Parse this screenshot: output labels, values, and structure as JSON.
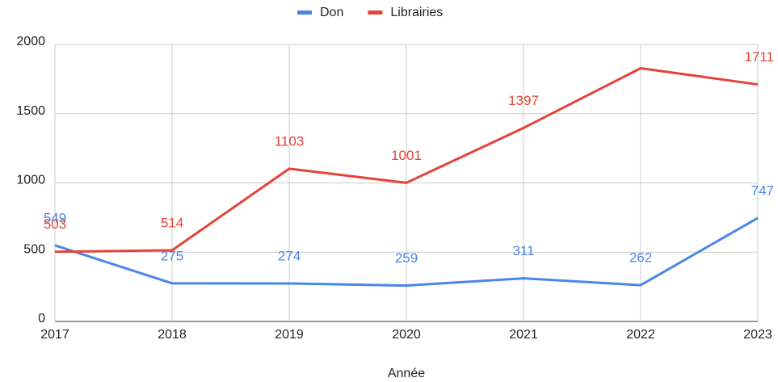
{
  "chart_data": {
    "type": "line",
    "x_label": "Année",
    "categories": [
      "2017",
      "2018",
      "2019",
      "2020",
      "2021",
      "2022",
      "2023"
    ],
    "series": [
      {
        "name": "Don",
        "color": "#4a86e8",
        "values": [
          549,
          275,
          274,
          259,
          311,
          262,
          747
        ],
        "value_labels": [
          "549",
          "275",
          "274",
          "259",
          "311",
          "262",
          "747"
        ]
      },
      {
        "name": "Librairies",
        "color": "#e3443a",
        "values": [
          503,
          514,
          1103,
          1001,
          1397,
          1828,
          1711
        ],
        "value_labels": [
          "503",
          "514",
          "1103",
          "1001",
          "1397",
          null,
          "1711"
        ]
      }
    ],
    "ylim": [
      0,
      2000
    ],
    "yticks": [
      0,
      500,
      1000,
      1500,
      2000
    ],
    "grid": true,
    "legend": "top"
  }
}
